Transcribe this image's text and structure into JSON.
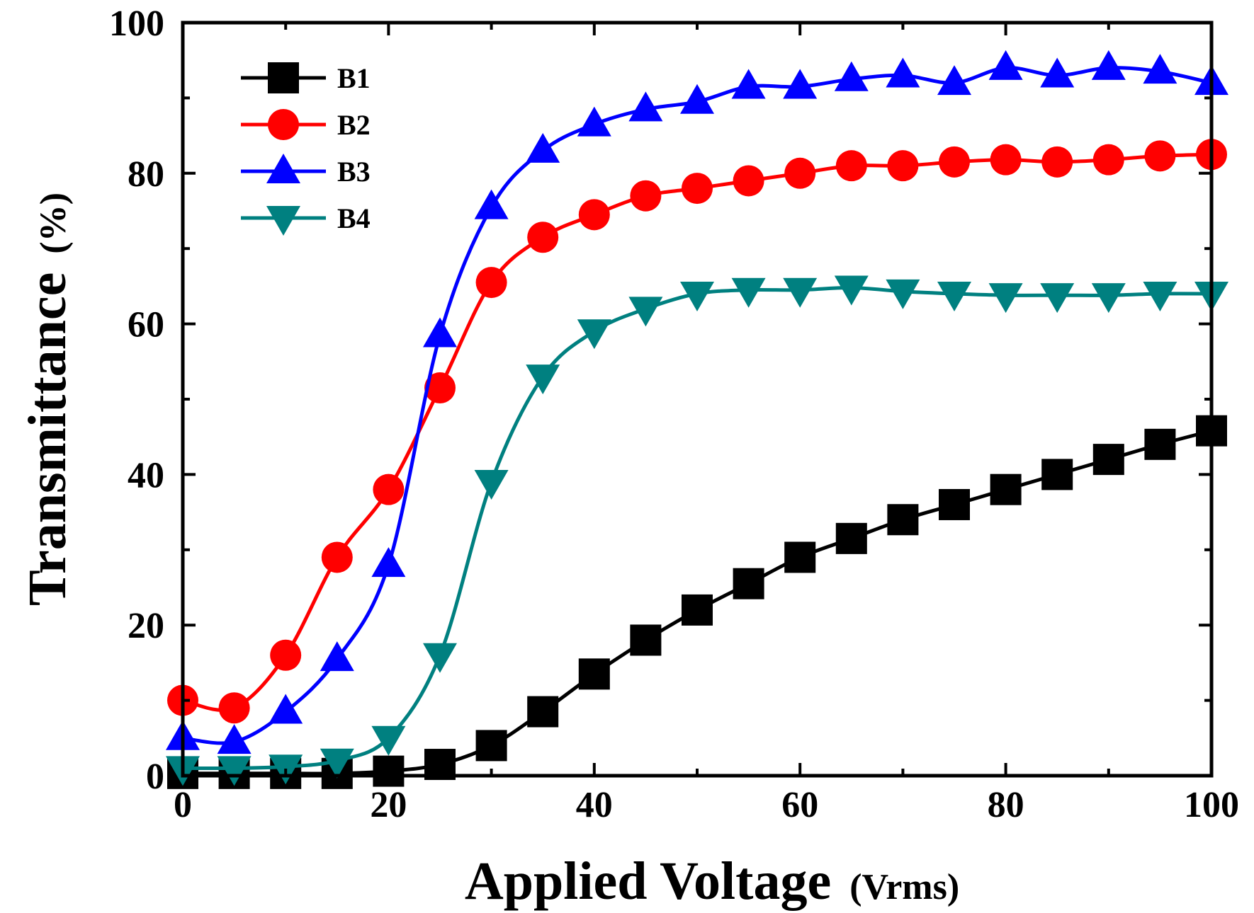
{
  "chart_data": {
    "type": "line",
    "title": "",
    "xlabel": "Applied Voltage",
    "xlabel_unit": "(Vrms)",
    "ylabel": "Transmittance",
    "ylabel_unit": "(%)",
    "xlim": [
      0,
      100
    ],
    "ylim": [
      0,
      100
    ],
    "xticks": [
      0,
      20,
      40,
      60,
      80,
      100
    ],
    "yticks": [
      0,
      20,
      40,
      60,
      80,
      100
    ],
    "grid": false,
    "legend_position": "top-left",
    "x": [
      0,
      5,
      10,
      15,
      20,
      25,
      30,
      35,
      40,
      45,
      50,
      55,
      60,
      65,
      70,
      75,
      80,
      85,
      90,
      95,
      100
    ],
    "series": [
      {
        "name": "B1",
        "color": "#000000",
        "marker": "square",
        "values": [
          0.3,
          0.3,
          0.3,
          0.3,
          0.6,
          1.5,
          4.0,
          8.5,
          13.5,
          18.0,
          22.0,
          25.5,
          29.0,
          31.5,
          34.0,
          36.0,
          38.0,
          40.0,
          42.0,
          44.0,
          45.8
        ]
      },
      {
        "name": "B2",
        "color": "#ff0000",
        "marker": "circle",
        "values": [
          10.0,
          9.0,
          16.0,
          29.0,
          38.0,
          51.5,
          65.5,
          71.5,
          74.5,
          77.0,
          78.0,
          79.0,
          80.0,
          81.0,
          81.0,
          81.5,
          81.8,
          81.5,
          81.8,
          82.3,
          82.5
        ]
      },
      {
        "name": "B3",
        "color": "#0000ff",
        "marker": "triangle-up",
        "values": [
          5.0,
          4.5,
          8.5,
          15.5,
          28.0,
          58.5,
          75.5,
          83.0,
          86.5,
          88.5,
          89.5,
          91.5,
          91.5,
          92.5,
          93.0,
          92.0,
          94.0,
          93.0,
          94.0,
          93.5,
          92.0
        ]
      },
      {
        "name": "B4",
        "color": "#008080",
        "marker": "triangle-down",
        "values": [
          1.0,
          1.0,
          1.2,
          2.0,
          5.0,
          16.0,
          39.0,
          53.0,
          59.0,
          62.0,
          64.0,
          64.5,
          64.5,
          64.8,
          64.3,
          64.0,
          63.8,
          63.8,
          63.8,
          64.0,
          64.0
        ]
      }
    ]
  }
}
